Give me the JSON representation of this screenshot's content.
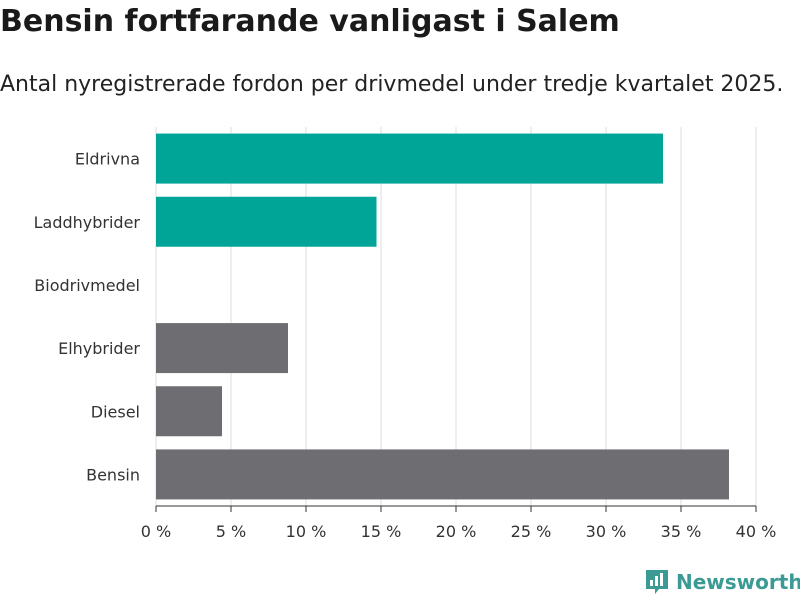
{
  "header": {
    "title": "Bensin fortfarande vanligast i Salem",
    "subtitle": "Antal nyregistrerade fordon per drivmedel under tredje kvartalet 2025."
  },
  "brand": {
    "name": "Newsworthy",
    "icon": "newsworthy-logo-icon",
    "color": "#3b9a93"
  },
  "colors": {
    "highlight": "#00a598",
    "default": "#6e6d72",
    "grid": "#dddddd"
  },
  "chart_data": {
    "type": "bar",
    "orientation": "horizontal",
    "title": "Bensin fortfarande vanligast i Salem",
    "subtitle": "Antal nyregistrerade fordon per drivmedel under tredje kvartalet 2025.",
    "categories": [
      "Eldrivna",
      "Laddhybrider",
      "Biodrivmedel",
      "Elhybrider",
      "Diesel",
      "Bensin"
    ],
    "values": [
      33.8,
      14.7,
      0,
      8.8,
      4.4,
      38.2
    ],
    "highlighted": [
      true,
      true,
      false,
      false,
      false,
      false
    ],
    "xlim": [
      0,
      40
    ],
    "xticks": [
      0,
      5,
      10,
      15,
      20,
      25,
      30,
      35,
      40
    ],
    "xtick_labels": [
      "0 %",
      "5 %",
      "10 %",
      "15 %",
      "20 %",
      "25 %",
      "30 %",
      "35 %",
      "40 %"
    ],
    "unit": "%",
    "grid": true,
    "legend": "none"
  }
}
